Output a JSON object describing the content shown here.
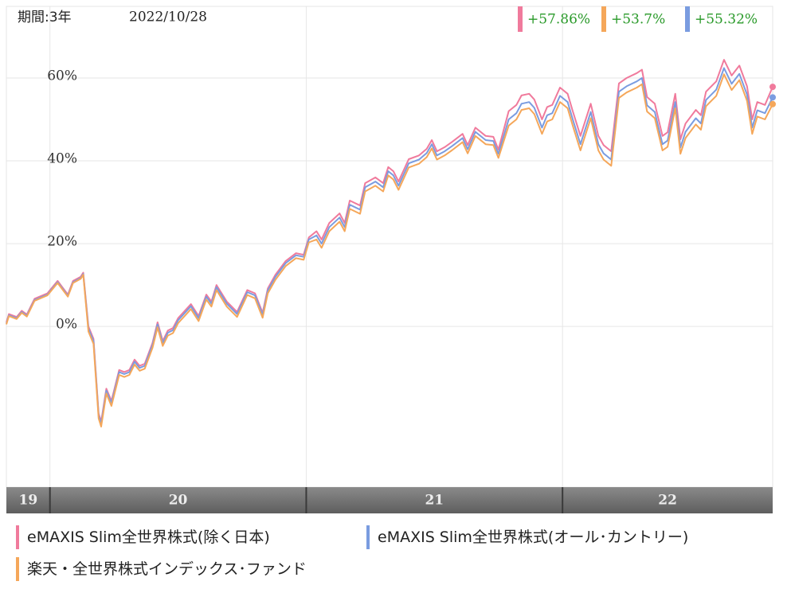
{
  "chart_data": {
    "type": "line",
    "period_label": "期間:3年",
    "date": "2022/10/28",
    "xlim": [
      2019.83,
      2022.82
    ],
    "xticks": [
      {
        "value": 2020,
        "label": "20"
      },
      {
        "value": 2021,
        "label": "21"
      },
      {
        "value": 2022,
        "label": "22"
      }
    ],
    "first_band_label": "19",
    "ylim": [
      -38.8,
      77.3
    ],
    "yticks": [
      {
        "value": 0,
        "label": "0%"
      },
      {
        "value": 20,
        "label": "20%"
      },
      {
        "value": 40,
        "label": "40%"
      },
      {
        "value": 60,
        "label": "60%"
      }
    ],
    "grid": true,
    "x": [
      2019.83,
      2019.84,
      2019.87,
      2019.89,
      2019.91,
      2019.94,
      2019.99,
      2020.03,
      2020.07,
      2020.09,
      2020.12,
      2020.13,
      2020.15,
      2020.17,
      2020.19,
      2020.2,
      2020.22,
      2020.24,
      2020.27,
      2020.29,
      2020.31,
      2020.33,
      2020.35,
      2020.37,
      2020.4,
      2020.42,
      2020.44,
      2020.46,
      2020.48,
      2020.5,
      2020.55,
      2020.58,
      2020.61,
      2020.63,
      2020.65,
      2020.69,
      2020.73,
      2020.77,
      2020.8,
      2020.83,
      2020.85,
      2020.88,
      2020.92,
      2020.96,
      2020.99,
      2021.01,
      2021.04,
      2021.06,
      2021.09,
      2021.13,
      2021.15,
      2021.17,
      2021.21,
      2021.23,
      2021.27,
      2021.3,
      2021.32,
      2021.34,
      2021.36,
      2021.4,
      2021.44,
      2021.47,
      2021.49,
      2021.51,
      2021.54,
      2021.57,
      2021.61,
      2021.63,
      2021.66,
      2021.7,
      2021.73,
      2021.75,
      2021.79,
      2021.82,
      2021.84,
      2021.87,
      2021.89,
      2021.92,
      2021.94,
      2021.96,
      2021.99,
      2022.02,
      2022.04,
      2022.07,
      2022.11,
      2022.14,
      2022.16,
      2022.19,
      2022.22,
      2022.25,
      2022.29,
      2022.31,
      2022.33,
      2022.36,
      2022.39,
      2022.41,
      2022.44,
      2022.46,
      2022.48,
      2022.52,
      2022.54,
      2022.56,
      2022.6,
      2022.63,
      2022.66,
      2022.69,
      2022.72,
      2022.74,
      2022.76,
      2022.79,
      2022.82
    ],
    "series": [
      {
        "name": "eMAXIS Slim全世界株式(除く日本)",
        "color": "#f07a9c",
        "end_label": "+57.86%",
        "values": [
          1,
          3,
          2.3,
          3.8,
          2.9,
          6.7,
          8,
          11,
          7.7,
          11,
          12,
          13,
          0,
          -3,
          -21,
          -23,
          -15,
          -18,
          -10.5,
          -11,
          -10.5,
          -8,
          -9.5,
          -9,
          -4,
          1,
          -3.5,
          -1,
          -0.4,
          2,
          5.4,
          2.5,
          7.7,
          6,
          10,
          6,
          3.5,
          8.8,
          8,
          3.3,
          9.2,
          12.5,
          15.8,
          17.7,
          17.3,
          21.5,
          23,
          21,
          25,
          27.3,
          25,
          30.4,
          29.2,
          34.6,
          36,
          34.6,
          38.5,
          37.5,
          35,
          40.4,
          41.3,
          42.9,
          45,
          42.3,
          43.3,
          44.6,
          46.5,
          43.8,
          48,
          46,
          45.8,
          42.7,
          52,
          53.5,
          55.8,
          56.2,
          54.8,
          50,
          53,
          53.5,
          57.7,
          56.2,
          52,
          46,
          53.8,
          46,
          43.8,
          42.3,
          58.7,
          60,
          61.2,
          62,
          55.4,
          53.8,
          46,
          46.9,
          56.2,
          45.2,
          49,
          52.3,
          51,
          56.7,
          59.2,
          64.4,
          60.6,
          63,
          58,
          50,
          54.2,
          53.5,
          57.86
        ]
      },
      {
        "name": "楽天・全世界株式インデックス･ファンド",
        "color": "#f5a75a",
        "end_label": "+53.7%",
        "values": [
          0.5,
          2.5,
          1.8,
          3.3,
          2.4,
          6.2,
          7.5,
          10.5,
          7.2,
          10.5,
          11.5,
          12.5,
          -1.2,
          -4.2,
          -22.2,
          -24.2,
          -16.2,
          -19.2,
          -11.7,
          -12.2,
          -11.7,
          -9.2,
          -10.7,
          -10.2,
          -5.2,
          -0.2,
          -4.7,
          -2.2,
          -1.6,
          0.8,
          4.2,
          1.3,
          6.5,
          4.8,
          8.8,
          4.8,
          2.3,
          7.6,
          6.8,
          2.1,
          8,
          11.3,
          14.6,
          16.5,
          16.1,
          20.3,
          21,
          19,
          23,
          25.3,
          23,
          28.4,
          27.2,
          32.6,
          34,
          32.6,
          36.5,
          35.5,
          33,
          38.4,
          39.3,
          40.9,
          43,
          40.3,
          41.3,
          42.6,
          44.5,
          41.8,
          46,
          44,
          43.8,
          40.7,
          48.5,
          50,
          52.3,
          52.7,
          51.3,
          46.5,
          49.5,
          50,
          54.2,
          52.7,
          48.5,
          42.5,
          50.3,
          42.5,
          40.3,
          38.8,
          55.2,
          56.5,
          57.7,
          58.5,
          51.9,
          50.3,
          42.5,
          43.4,
          52.7,
          41.7,
          45.5,
          48.8,
          47.5,
          53.2,
          55.7,
          60.9,
          57.1,
          59.5,
          54.5,
          46.5,
          50.7,
          50,
          53.7
        ]
      },
      {
        "name": "eMAXIS Slim全世界株式(オール･カントリー)",
        "color": "#7a9ce0",
        "end_label": "+55.32%",
        "values": [
          0.7,
          2.7,
          2,
          3.5,
          2.6,
          6.4,
          7.7,
          10.7,
          7.4,
          10.7,
          11.7,
          12.7,
          -0.5,
          -3.5,
          -21.5,
          -23.5,
          -15.5,
          -18.5,
          -11,
          -11.5,
          -11,
          -8.5,
          -10,
          -9.5,
          -4.5,
          0.5,
          -4,
          -1.5,
          -0.9,
          1.5,
          4.9,
          2,
          7.2,
          5.5,
          9.5,
          5.5,
          3,
          8.3,
          7.5,
          2.8,
          8.7,
          12,
          15.3,
          17.2,
          16.8,
          21,
          22,
          20,
          24,
          26.3,
          24,
          29.4,
          28.2,
          33.6,
          35,
          33.6,
          37.5,
          36.5,
          34,
          39.4,
          40.3,
          41.9,
          44,
          41.3,
          42.3,
          43.6,
          45.5,
          42.8,
          47,
          45,
          44.8,
          41.7,
          50,
          51.5,
          53.8,
          54.2,
          52.8,
          48,
          51,
          51.5,
          55.7,
          54.2,
          50,
          44,
          51.8,
          44,
          41.8,
          40.3,
          56.7,
          58,
          59.2,
          60,
          53.4,
          51.8,
          44,
          44.9,
          54.2,
          43.2,
          47,
          50.3,
          49,
          54.7,
          57.2,
          62.4,
          58.6,
          61,
          56,
          48,
          52.2,
          51.5,
          55.32
        ]
      }
    ]
  }
}
